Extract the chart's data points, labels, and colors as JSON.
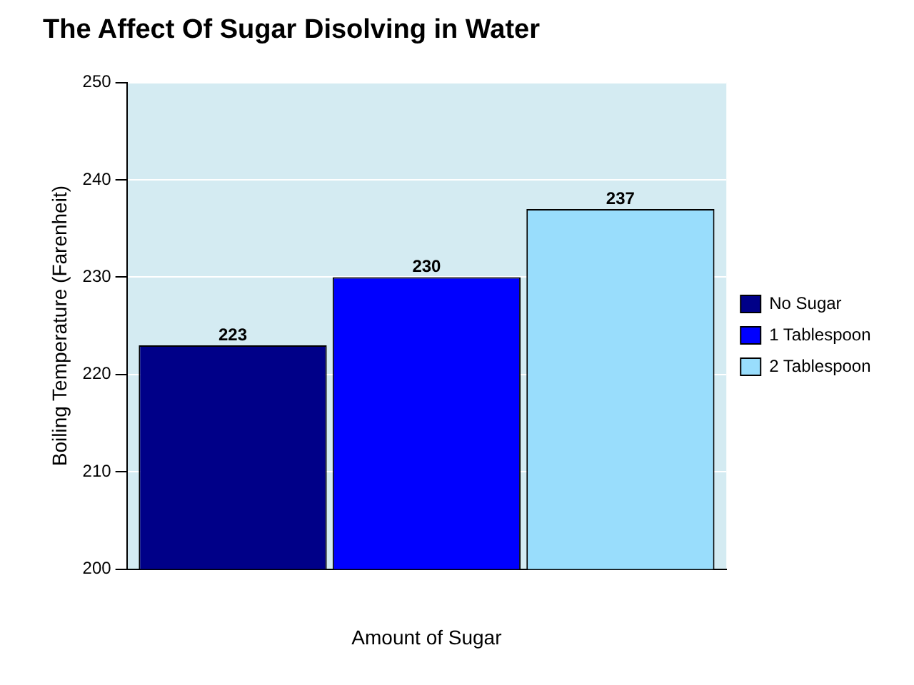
{
  "chart_data": {
    "type": "bar",
    "title": "The Affect Of Sugar Disolving in Water",
    "xlabel": "Amount of Sugar",
    "ylabel": "Boiling Temperature (Farenheit)",
    "categories": [
      null
    ],
    "series": [
      {
        "name": "No Sugar",
        "color": "#000088",
        "values": [
          223
        ]
      },
      {
        "name": "1 Tablespoon",
        "color": "#0000ff",
        "values": [
          230
        ]
      },
      {
        "name": "2 Tablespoon",
        "color": "#99ddfc",
        "values": [
          237
        ]
      }
    ],
    "ylim": [
      200,
      250
    ],
    "yticks": [
      200,
      210,
      220,
      230,
      240,
      250
    ],
    "grid": "y",
    "legend": "right",
    "data_labels": true
  }
}
